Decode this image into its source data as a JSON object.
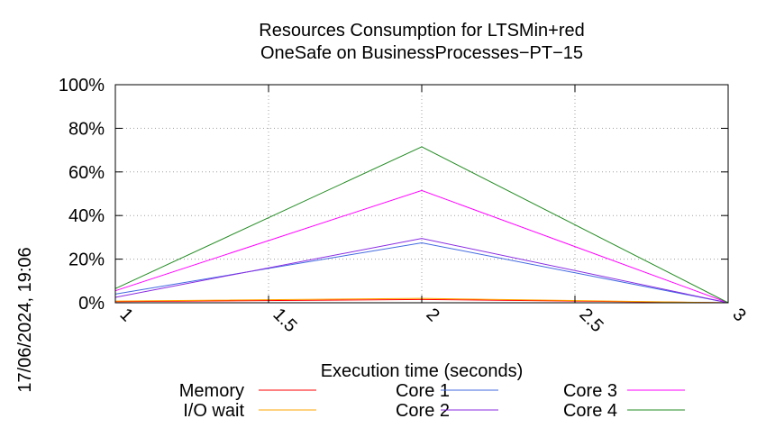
{
  "chart_data": {
    "type": "line",
    "title": [
      "Resources Consumption for LTSMin+red",
      "OneSafe on BusinessProcesses−PT−15"
    ],
    "xlabel": "Execution time (seconds)",
    "ylabel": "",
    "side_label": "17/06/2024, 19:06",
    "xlim": [
      1,
      3
    ],
    "ylim": [
      0,
      100
    ],
    "xticks": [
      1,
      1.5,
      2,
      2.5,
      3
    ],
    "xtick_labels": [
      "1",
      "1.5",
      "2",
      "2.5",
      "3"
    ],
    "yticks": [
      0,
      20,
      40,
      60,
      80,
      100
    ],
    "ytick_labels": [
      "0%",
      "20%",
      "40%",
      "60%",
      "80%",
      "100%"
    ],
    "grid": true,
    "legend_position": "bottom",
    "series": [
      {
        "name": "Memory",
        "color": "#ff0000",
        "x": [
          1,
          2,
          3
        ],
        "y": [
          0.5,
          1.5,
          0
        ]
      },
      {
        "name": "I/O wait",
        "color": "#ffa500",
        "x": [
          1,
          2,
          3
        ],
        "y": [
          0.8,
          2.0,
          0
        ]
      },
      {
        "name": "Core 1",
        "color": "#4169e1",
        "x": [
          1,
          2,
          3
        ],
        "y": [
          4,
          27.5,
          0
        ]
      },
      {
        "name": "Core 2",
        "color": "#8a2be2",
        "x": [
          1,
          2,
          3
        ],
        "y": [
          2.5,
          29.5,
          0
        ]
      },
      {
        "name": "Core 3",
        "color": "#ff00ff",
        "x": [
          1,
          2,
          3
        ],
        "y": [
          5.5,
          51.5,
          0
        ]
      },
      {
        "name": "Core 4",
        "color": "#228b22",
        "x": [
          1,
          2,
          3
        ],
        "y": [
          6.5,
          71.5,
          0
        ]
      }
    ]
  }
}
